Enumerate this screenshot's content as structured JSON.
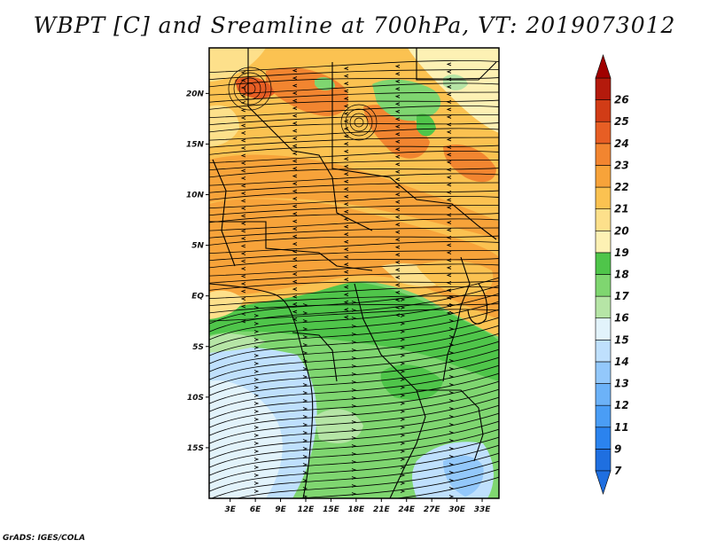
{
  "title": "WBPT [C] and Sreamline at 700hPa, VT: 2019073012",
  "footer": "GrADS: IGES/COLA",
  "map": {
    "lon_labels": [
      "3E",
      "6E",
      "9E",
      "12E",
      "15E",
      "18E",
      "21E",
      "24E",
      "27E",
      "30E",
      "33E"
    ],
    "lat_labels": [
      "20N",
      "15N",
      "10N",
      "5N",
      "EQ",
      "5S",
      "10S",
      "15S"
    ],
    "lon_range": [
      0.5,
      35
    ],
    "lat_range": [
      -20,
      24.5
    ]
  },
  "legend": {
    "levels": [
      "7",
      "9",
      "11",
      "12",
      "13",
      "14",
      "15",
      "16",
      "17",
      "18",
      "19",
      "20",
      "21",
      "22",
      "23",
      "24",
      "25",
      "26"
    ],
    "colors": [
      "#1f6fe0",
      "#2b83ee",
      "#4a9df5",
      "#6cb2f8",
      "#93c8fb",
      "#bfe0fd",
      "#e2f3fb",
      "#b6e5a6",
      "#7fd670",
      "#4fc54a",
      "#fdf1b4",
      "#fde08b",
      "#fbc251",
      "#f7a33a",
      "#f28530",
      "#e75e24",
      "#d13c16",
      "#b41a0c"
    ],
    "arrow_colors": {
      "low": "#1f6fe0",
      "high": "#a00000"
    }
  }
}
